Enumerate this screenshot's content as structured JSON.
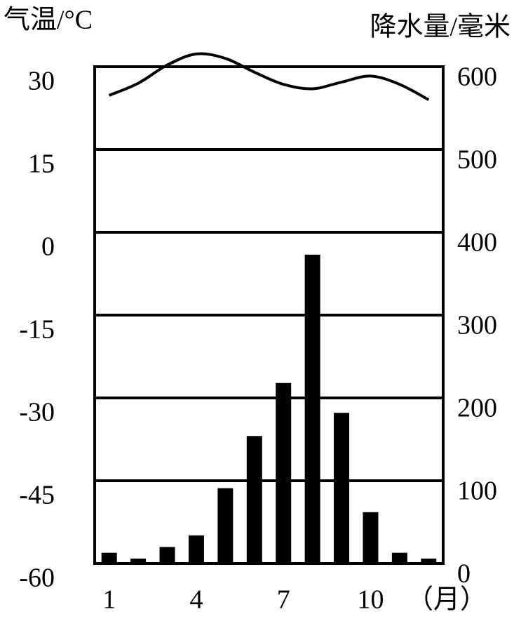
{
  "chart_data": {
    "type": "bar-line",
    "y_label": "气温/°C",
    "y2_label": "降水量/毫米",
    "x_label": "（月）",
    "categories": [
      1,
      null,
      null,
      4,
      null,
      null,
      7,
      null,
      null,
      10,
      null,
      null
    ],
    "series": [
      {
        "type": "line",
        "axis": "y",
        "color": "#000000",
        "values": [
          24.8,
          27,
          30.3,
          32.3,
          31.5,
          29,
          26.8,
          26,
          27.2,
          28.3,
          26.8,
          24
        ]
      },
      {
        "type": "bar",
        "axis": "y2",
        "color": "#000000",
        "values": [
          13,
          6,
          20,
          34,
          91,
          154,
          218,
          373,
          182,
          62,
          13,
          6
        ]
      }
    ],
    "ylim": [
      -60,
      30
    ],
    "yticks": [
      -60,
      -45,
      -30,
      -15,
      0,
      15,
      30
    ],
    "y2lim": [
      0,
      600
    ],
    "y2ticks": [
      0,
      100,
      200,
      300,
      400,
      500,
      600
    ],
    "grid": true
  }
}
